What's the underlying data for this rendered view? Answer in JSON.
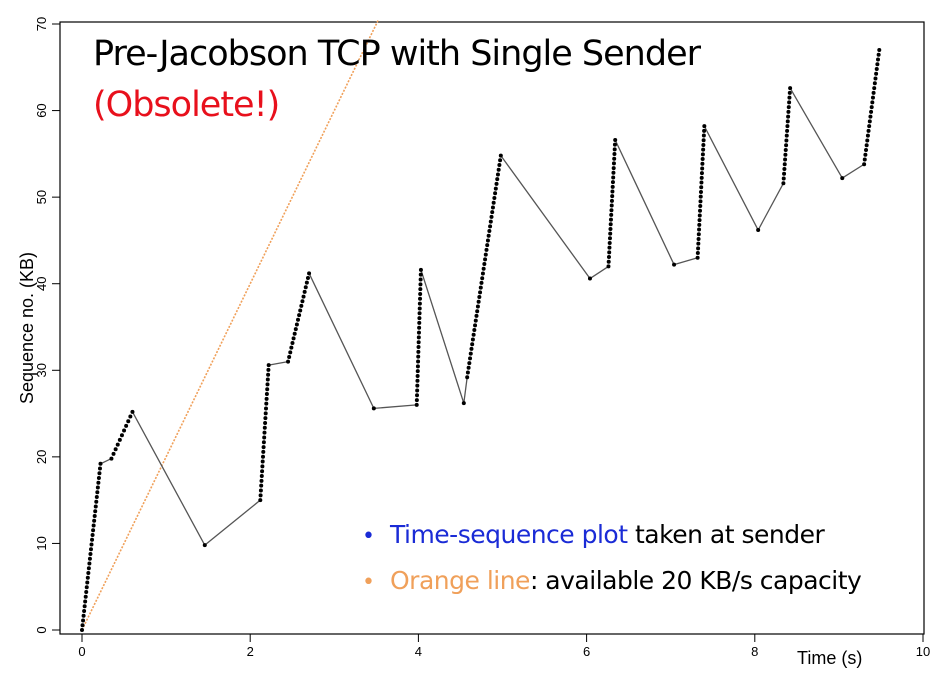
{
  "slide": {
    "title": "Pre-Jacobson TCP with Single Sender",
    "subtitle": "(Obsolete!)",
    "subtitle_color": "#e8101c",
    "legend": [
      {
        "bullet": "•",
        "highlight": "Time-sequence plot",
        "rest": " taken at sender",
        "color": "#1a2bd6"
      },
      {
        "bullet": "•",
        "highlight": "Orange line",
        "rest": ": available 20 KB/s capacity",
        "color": "#f0a05a"
      }
    ]
  },
  "chart_data": {
    "type": "scatter",
    "xlabel": "Time (s)",
    "ylabel": "Sequence no. (KB)",
    "xlim": [
      0,
      10
    ],
    "ylim": [
      0,
      70
    ],
    "xticks": [
      0,
      2,
      4,
      6,
      8,
      10
    ],
    "yticks": [
      0,
      10,
      20,
      30,
      40,
      50,
      60,
      70
    ],
    "grid": false,
    "point_color": "#000000",
    "line_color": "#555555",
    "capacity_line": {
      "slope": 20,
      "intercept": 0,
      "color": "#f0a05a"
    },
    "bursts": [
      {
        "x0": 0.0,
        "x1": 0.22,
        "y0": 0.0,
        "y1": 19.2
      },
      {
        "x0": 0.35,
        "x1": 0.6,
        "y0": 19.8,
        "y1": 25.2
      },
      {
        "x0": 1.46,
        "x1": 1.46,
        "y0": 9.8,
        "y1": 9.8
      },
      {
        "x0": 2.12,
        "x1": 2.22,
        "y0": 15.0,
        "y1": 30.6
      },
      {
        "x0": 2.45,
        "x1": 2.7,
        "y0": 31.0,
        "y1": 41.2
      },
      {
        "x0": 3.47,
        "x1": 3.47,
        "y0": 25.6,
        "y1": 25.6
      },
      {
        "x0": 3.98,
        "x1": 4.03,
        "y0": 26.0,
        "y1": 41.6
      },
      {
        "x0": 4.54,
        "x1": 4.54,
        "y0": 26.2,
        "y1": 26.2
      },
      {
        "x0": 4.58,
        "x1": 4.98,
        "y0": 29.2,
        "y1": 54.8
      },
      {
        "x0": 6.04,
        "x1": 6.04,
        "y0": 40.6,
        "y1": 40.6
      },
      {
        "x0": 6.26,
        "x1": 6.34,
        "y0": 42.0,
        "y1": 56.6
      },
      {
        "x0": 7.04,
        "x1": 7.04,
        "y0": 42.2,
        "y1": 42.2
      },
      {
        "x0": 7.32,
        "x1": 7.4,
        "y0": 43.0,
        "y1": 58.2
      },
      {
        "x0": 8.04,
        "x1": 8.04,
        "y0": 46.2,
        "y1": 46.2
      },
      {
        "x0": 8.34,
        "x1": 8.42,
        "y0": 51.6,
        "y1": 62.6
      },
      {
        "x0": 9.04,
        "x1": 9.04,
        "y0": 52.2,
        "y1": 52.2
      },
      {
        "x0": 9.3,
        "x1": 9.48,
        "y0": 53.8,
        "y1": 67.0
      }
    ]
  }
}
